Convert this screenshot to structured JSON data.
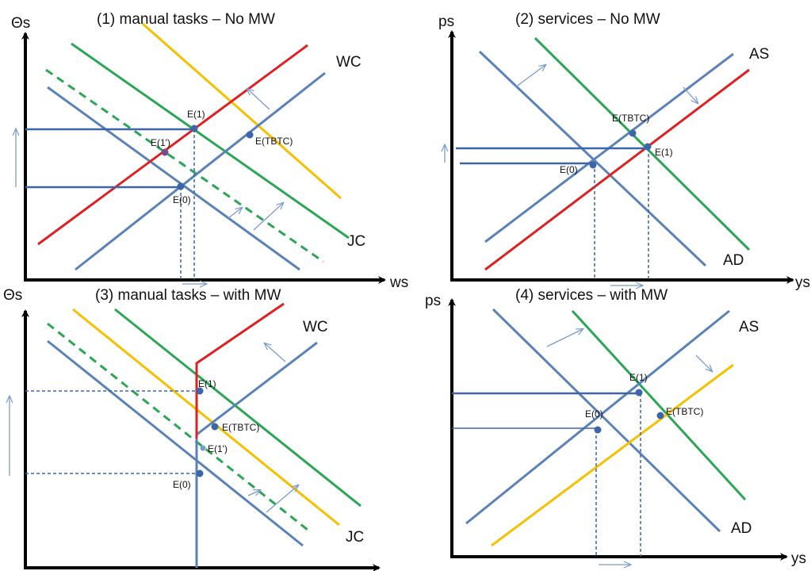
{
  "colors": {
    "blue": "#5b82b8",
    "green": "#2aa655",
    "red": "#e02020",
    "yellow": "#f5c000",
    "axis": "#000000",
    "point": "#3c66a8",
    "point_red": "#7a4a8c"
  },
  "panels": [
    {
      "title": "(1) manual tasks – No MW",
      "y_axis_label": "Θs",
      "x_axis_label": "ws",
      "curve_labels": [
        "WC",
        "JC"
      ],
      "points": [
        "E(1)",
        "E(1')",
        "E(TBTC)",
        "E(0)"
      ]
    },
    {
      "title": "(2) services – No MW",
      "y_axis_label": "ps",
      "x_axis_label": "ys",
      "curve_labels": [
        "AS",
        "AD"
      ],
      "points": [
        "E(TBTC)",
        "E(1)",
        "E(0)"
      ]
    },
    {
      "title": "(3) manual tasks – with MW",
      "y_axis_label": "Θs",
      "x_axis_label": "",
      "curve_labels": [
        "WC",
        "JC"
      ],
      "points": [
        "E(1)",
        "E(TBTC)",
        "E(1')",
        "E(0)"
      ]
    },
    {
      "title": "(4) services – with MW",
      "y_axis_label": "ps",
      "x_axis_label": "ys",
      "curve_labels": [
        "AS",
        "AD"
      ],
      "points": [
        "E(1)",
        "E(0)",
        "E(TBTC)"
      ]
    }
  ]
}
